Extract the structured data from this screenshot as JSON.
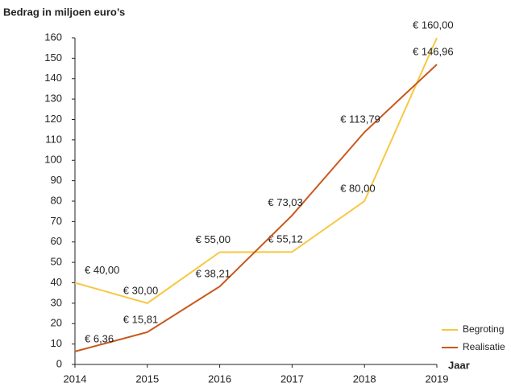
{
  "chart_data": {
    "type": "line",
    "y_axis_label": "Bedrag in miljoen euro’s",
    "x_axis_label": "Jaar",
    "x": [
      2014,
      2015,
      2016,
      2017,
      2018,
      2019
    ],
    "xlim": [
      2014,
      2019
    ],
    "xticks": [
      2014,
      2015,
      2016,
      2017,
      2018,
      2019
    ],
    "ylim": [
      0,
      160
    ],
    "yticks": [
      0,
      10,
      20,
      30,
      40,
      50,
      60,
      70,
      80,
      90,
      100,
      110,
      120,
      130,
      140,
      150,
      160
    ],
    "grid": false,
    "legend": "lower right",
    "series": [
      {
        "name": "Begroting",
        "color": "#f7c843",
        "values": [
          40,
          30,
          55,
          55.12,
          80,
          160
        ],
        "value_labels": [
          "€ 40,00",
          "€ 30,00",
          "€ 55,00",
          "€ 55,12",
          "€ 80,00",
          "€ 160,00"
        ]
      },
      {
        "name": "Realisatie",
        "color": "#c8581a",
        "values": [
          6.36,
          15.81,
          38.21,
          73.03,
          113.79,
          146.96
        ],
        "value_labels": [
          "€ 6,36",
          "€ 15,81",
          "€ 38,21",
          "€ 73,03",
          "€ 113,79",
          "€ 146,96"
        ]
      }
    ]
  }
}
